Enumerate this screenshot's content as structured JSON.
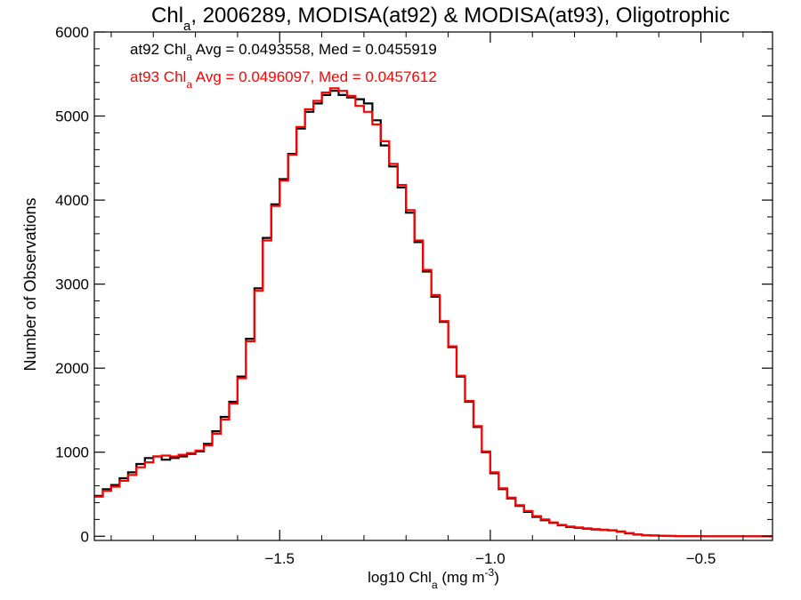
{
  "chart_data": {
    "type": "line",
    "title_parts": {
      "pre": "Chl",
      "sub": "a",
      "post": ", 2006289, MODISA(at92) & MODISA(at93), Oligotrophic"
    },
    "xlabel_parts": {
      "pre": "log10 Chl",
      "sub": "a",
      "mid": " (mg m",
      "sup": "-3",
      "post": ")"
    },
    "ylabel": "Number of Observations",
    "xlim": [
      -1.94,
      -0.33
    ],
    "ylim": [
      -50,
      6000
    ],
    "xticks": [
      -1.5,
      -1.0,
      -0.5
    ],
    "xtick_labels": [
      "−1.5",
      "−1.0",
      "−0.5"
    ],
    "yticks": [
      0,
      1000,
      2000,
      3000,
      4000,
      5000,
      6000
    ],
    "ytick_labels": [
      "0",
      "1000",
      "2000",
      "3000",
      "4000",
      "5000",
      "6000"
    ],
    "grid": false,
    "annotations": [
      {
        "prefix": "at92 Chl",
        "sub": "a",
        "suffix": " Avg = 0.0493558, Med = 0.0455919",
        "color": "#000000"
      },
      {
        "prefix": "at93 Chl",
        "sub": "a",
        "suffix": " Avg = 0.0496097, Med = 0.0457612",
        "color": "#ff0000"
      }
    ],
    "series": [
      {
        "color": "#000000",
        "style": "step",
        "x": [
          -1.94,
          -1.92,
          -1.9,
          -1.88,
          -1.86,
          -1.84,
          -1.82,
          -1.8,
          -1.78,
          -1.76,
          -1.74,
          -1.72,
          -1.7,
          -1.68,
          -1.66,
          -1.64,
          -1.62,
          -1.6,
          -1.58,
          -1.56,
          -1.54,
          -1.52,
          -1.5,
          -1.48,
          -1.46,
          -1.44,
          -1.42,
          -1.4,
          -1.38,
          -1.36,
          -1.34,
          -1.32,
          -1.3,
          -1.28,
          -1.26,
          -1.24,
          -1.22,
          -1.2,
          -1.18,
          -1.16,
          -1.14,
          -1.12,
          -1.1,
          -1.08,
          -1.06,
          -1.04,
          -1.02,
          -1.0,
          -0.98,
          -0.96,
          -0.94,
          -0.92,
          -0.9,
          -0.88,
          -0.86,
          -0.84,
          -0.82,
          -0.8,
          -0.78,
          -0.76,
          -0.74,
          -0.72,
          -0.7,
          -0.68,
          -0.66,
          -0.64,
          -0.62,
          -0.6,
          -0.58,
          -0.56,
          -0.54,
          -0.52,
          -0.5,
          -0.45,
          -0.4,
          -0.35
        ],
        "y": [
          480,
          560,
          610,
          690,
          760,
          860,
          930,
          950,
          910,
          930,
          950,
          980,
          1010,
          1100,
          1250,
          1420,
          1600,
          1900,
          2350,
          2950,
          3550,
          3950,
          4250,
          4550,
          4850,
          5050,
          5150,
          5250,
          5300,
          5250,
          5220,
          5200,
          5150,
          4950,
          4650,
          4400,
          4150,
          3850,
          3500,
          3150,
          2850,
          2550,
          2250,
          1900,
          1600,
          1300,
          1000,
          750,
          560,
          450,
          360,
          290,
          230,
          190,
          160,
          130,
          110,
          100,
          90,
          80,
          75,
          70,
          55,
          35,
          20,
          12,
          8,
          5,
          3,
          2,
          1,
          1,
          0,
          0,
          0,
          0
        ]
      },
      {
        "color": "#ff0000",
        "style": "step",
        "x": [
          -1.94,
          -1.92,
          -1.9,
          -1.88,
          -1.86,
          -1.84,
          -1.82,
          -1.8,
          -1.78,
          -1.76,
          -1.74,
          -1.72,
          -1.7,
          -1.68,
          -1.66,
          -1.64,
          -1.62,
          -1.6,
          -1.58,
          -1.56,
          -1.54,
          -1.52,
          -1.5,
          -1.48,
          -1.46,
          -1.44,
          -1.42,
          -1.4,
          -1.38,
          -1.36,
          -1.34,
          -1.32,
          -1.3,
          -1.28,
          -1.26,
          -1.24,
          -1.22,
          -1.2,
          -1.18,
          -1.16,
          -1.14,
          -1.12,
          -1.1,
          -1.08,
          -1.06,
          -1.04,
          -1.02,
          -1.0,
          -0.98,
          -0.96,
          -0.94,
          -0.92,
          -0.9,
          -0.88,
          -0.86,
          -0.84,
          -0.82,
          -0.8,
          -0.78,
          -0.76,
          -0.74,
          -0.72,
          -0.7,
          -0.68,
          -0.66,
          -0.64,
          -0.62,
          -0.6,
          -0.58,
          -0.56,
          -0.54,
          -0.52,
          -0.5,
          -0.45,
          -0.4,
          -0.35
        ],
        "y": [
          470,
          540,
          590,
          660,
          730,
          820,
          880,
          950,
          960,
          950,
          970,
          990,
          1020,
          1080,
          1220,
          1390,
          1580,
          1880,
          2320,
          2920,
          3520,
          3930,
          4230,
          4540,
          4870,
          5080,
          5180,
          5280,
          5330,
          5300,
          5240,
          5120,
          5050,
          4900,
          4700,
          4430,
          4180,
          3880,
          3520,
          3170,
          2870,
          2560,
          2260,
          1910,
          1610,
          1310,
          1010,
          760,
          570,
          460,
          370,
          300,
          240,
          200,
          165,
          135,
          115,
          105,
          95,
          85,
          78,
          72,
          58,
          38,
          22,
          13,
          9,
          6,
          4,
          2,
          1,
          1,
          0,
          0,
          0,
          0
        ]
      }
    ]
  }
}
